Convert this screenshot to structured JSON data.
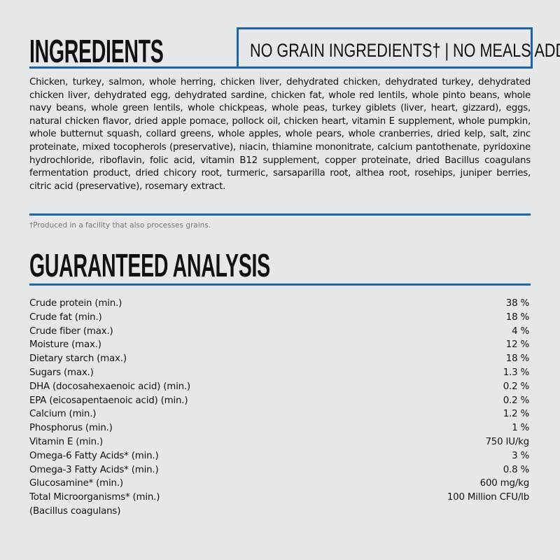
{
  "ingredients": {
    "title": "INGREDIENTS",
    "badge": "NO GRAIN INGREDIENTS† | NO MEALS ADDED",
    "text": "Chicken, turkey, salmon, whole herring, chicken liver, dehydrated chicken, dehydrated turkey, dehydrated chicken liver, dehydrated egg, dehydrated sardine, chicken fat, whole red lentils, whole pinto beans, whole navy beans, whole green lentils, whole chickpeas, whole peas, turkey giblets (liver, heart, gizzard), eggs, natural chicken flavor, dried apple pomace, pollock oil, chicken heart, vitamin E supplement, whole pumpkin, whole butternut squash, collard greens, whole apples, whole pears, whole cranberries, dried kelp, salt, zinc proteinate, mixed tocopherols (preservative), niacin, thiamine mononitrate, calcium pantothenate, pyridoxine hydrochloride, riboflavin, folic acid, vitamin B12 supplement, copper proteinate, dried Bacillus coagulans fermentation product, dried chicory root, turmeric, sarsaparilla root, althea root, rosehips, juniper berries, citric acid (preservative), rosemary extract.",
    "footnote": "†Produced in a facility that also processes grains."
  },
  "analysis": {
    "title": "GUARANTEED ANALYSIS",
    "rows": [
      {
        "label": "Crude protein (min.)",
        "value": "38 %"
      },
      {
        "label": "Crude fat (min.)",
        "value": "18 %"
      },
      {
        "label": "Crude fiber (max.)",
        "value": "4 %"
      },
      {
        "label": "Moisture (max.)",
        "value": "12 %"
      },
      {
        "label": "Dietary starch (max.)",
        "value": "18 %"
      },
      {
        "label": "Sugars (max.)",
        "value": "1.3 %"
      },
      {
        "label": "DHA (docosahexaenoic acid) (min.)",
        "value": "0.2 %"
      },
      {
        "label": "EPA (eicosapentaenoic acid) (min.)",
        "value": "0.2 %"
      },
      {
        "label": "Calcium (min.)",
        "value": "1.2 %"
      },
      {
        "label": "Phosphorus (min.)",
        "value": "1 %"
      },
      {
        "label": "Vitamin E (min.)",
        "value": "750 IU/kg"
      },
      {
        "label": "Omega-6 Fatty Acids* (min.)",
        "value": "3 %"
      },
      {
        "label": "Omega-3 Fatty Acids* (min.)",
        "value": "0.8 %"
      },
      {
        "label": "Glucosamine* (min.)",
        "value": "600 mg/kg"
      },
      {
        "label": "Total Microorganisms* (min.)",
        "value": "100 Million CFU/lb"
      },
      {
        "label": "(Bacillus coagulans)",
        "value": ""
      }
    ]
  },
  "colors": {
    "accent": "#1f63a8",
    "background": "#e6e7e9"
  }
}
